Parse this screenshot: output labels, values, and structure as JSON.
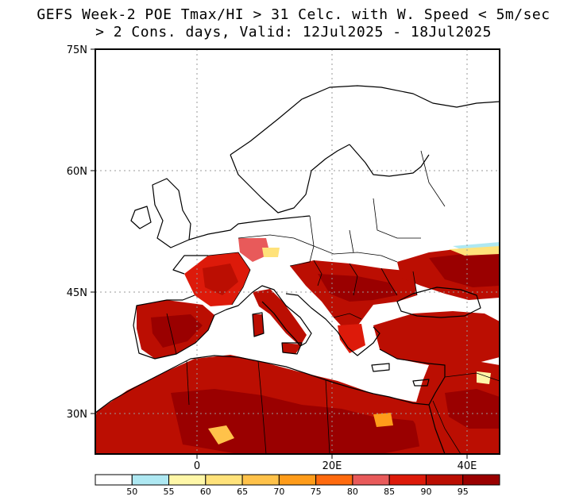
{
  "title": {
    "line1": "GEFS Week-2 POE Tmax/HI > 31 Celc. with W. Speed < 5m/sec",
    "line2": "> 2 Cons. days, Valid: 12Jul2025 - 18Jul2025"
  },
  "axes": {
    "y_ticks": [
      "75N",
      "60N",
      "45N",
      "30N"
    ],
    "x_ticks": [
      "0",
      "20E",
      "40E"
    ]
  },
  "colorbar": {
    "colors": [
      "#ffffff",
      "#aee8f2",
      "#fff7a8",
      "#ffe27a",
      "#ffc24a",
      "#ff9c1a",
      "#ff6a0e",
      "#e85a5a",
      "#dd1a0a",
      "#bb0e02",
      "#9a0000"
    ],
    "labels": [
      "50",
      "55",
      "60",
      "65",
      "70",
      "75",
      "80",
      "85",
      "90",
      "95"
    ]
  }
}
